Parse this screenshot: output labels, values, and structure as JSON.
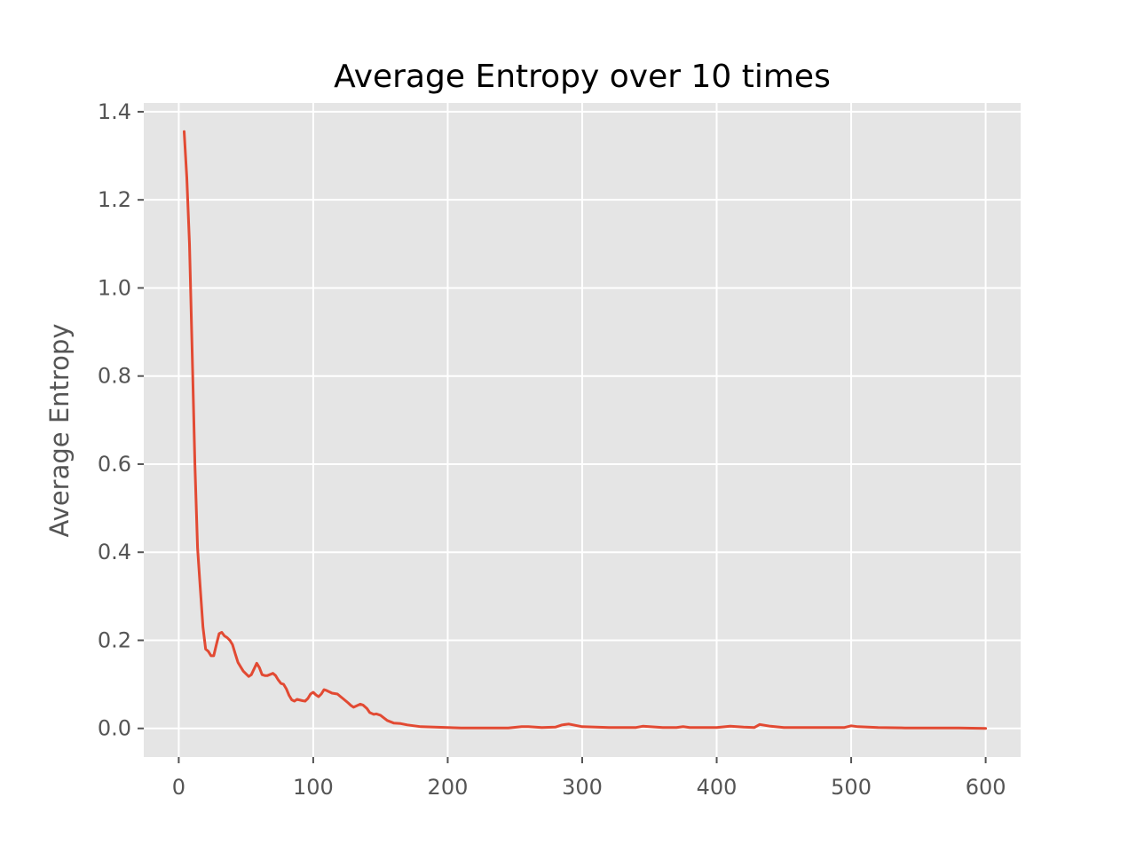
{
  "chart_data": {
    "type": "line",
    "title": "Average Entropy over 10 times",
    "xlabel": "",
    "ylabel": "Average Entropy",
    "xlim": [
      -26,
      626
    ],
    "ylim": [
      -0.065,
      1.42
    ],
    "xticks": [
      0,
      100,
      200,
      300,
      400,
      500,
      600
    ],
    "yticks": [
      0.0,
      0.2,
      0.4,
      0.6,
      0.8,
      1.0,
      1.2,
      1.4
    ],
    "ytick_labels": [
      "0.0",
      "0.2",
      "0.4",
      "0.6",
      "0.8",
      "1.0",
      "1.2",
      "1.4"
    ],
    "grid": true,
    "legend": "none",
    "colors": {
      "background": "#e5e5e5",
      "series": "#e24a33"
    },
    "series": [
      {
        "name": "",
        "x": [
          4,
          6,
          8,
          10,
          12,
          14,
          16,
          18,
          20,
          22,
          24,
          26,
          28,
          30,
          32,
          34,
          36,
          38,
          40,
          42,
          44,
          46,
          48,
          52,
          54,
          56,
          58,
          60,
          62,
          64,
          66,
          70,
          72,
          74,
          76,
          78,
          80,
          82,
          84,
          86,
          88,
          92,
          94,
          96,
          98,
          100,
          102,
          104,
          106,
          108,
          110,
          114,
          118,
          122,
          126,
          128,
          130,
          135,
          137,
          140,
          142,
          145,
          147,
          150,
          155,
          160,
          165,
          170,
          180,
          190,
          200,
          210,
          220,
          230,
          245,
          255,
          260,
          270,
          280,
          285,
          290,
          300,
          320,
          340,
          345,
          360,
          370,
          375,
          380,
          400,
          410,
          420,
          428,
          432,
          440,
          450,
          460,
          480,
          495,
          500,
          505,
          520,
          540,
          560,
          580,
          600
        ],
        "values": [
          1.355,
          1.25,
          1.1,
          0.85,
          0.6,
          0.41,
          0.32,
          0.23,
          0.18,
          0.175,
          0.165,
          0.165,
          0.19,
          0.215,
          0.218,
          0.21,
          0.206,
          0.2,
          0.19,
          0.17,
          0.15,
          0.14,
          0.13,
          0.118,
          0.122,
          0.135,
          0.148,
          0.138,
          0.122,
          0.12,
          0.12,
          0.125,
          0.12,
          0.11,
          0.102,
          0.1,
          0.09,
          0.075,
          0.065,
          0.062,
          0.066,
          0.063,
          0.062,
          0.068,
          0.078,
          0.082,
          0.076,
          0.072,
          0.078,
          0.088,
          0.086,
          0.08,
          0.078,
          0.068,
          0.058,
          0.052,
          0.048,
          0.055,
          0.053,
          0.045,
          0.036,
          0.032,
          0.033,
          0.03,
          0.018,
          0.012,
          0.011,
          0.008,
          0.004,
          0.003,
          0.002,
          0.001,
          0.001,
          0.001,
          0.001,
          0.004,
          0.004,
          0.002,
          0.003,
          0.008,
          0.01,
          0.004,
          0.002,
          0.002,
          0.005,
          0.002,
          0.002,
          0.004,
          0.002,
          0.002,
          0.005,
          0.003,
          0.002,
          0.009,
          0.005,
          0.002,
          0.002,
          0.002,
          0.002,
          0.006,
          0.004,
          0.002,
          0.001,
          0.001,
          0.001,
          0.0
        ]
      }
    ]
  }
}
